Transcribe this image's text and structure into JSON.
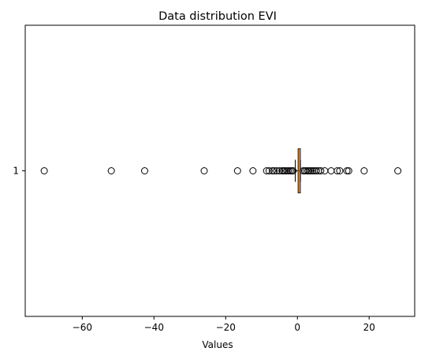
{
  "chart_data": {
    "type": "boxplot",
    "orientation": "horizontal",
    "title": "Data distribution EVI",
    "xlabel": "Values",
    "ylabel": "",
    "xlim": [
      -75.9,
      32.7
    ],
    "xticks": [
      -60,
      -40,
      -20,
      0,
      20
    ],
    "xtick_labels": [
      "−60",
      "−40",
      "−20",
      "0",
      "20"
    ],
    "ytick_labels": [
      "1"
    ],
    "grid": false,
    "legend": "none",
    "box": {
      "whisker_low": -0.6,
      "q1": 0.2,
      "median": 0.45,
      "q3": 0.8,
      "whisker_high": 0.85
    },
    "outliers": [
      -70.6,
      -51.9,
      -42.6,
      -26.0,
      -16.7,
      -12.4,
      -8.6,
      -7.9,
      -7.0,
      -6.5,
      -5.8,
      -5.0,
      -4.3,
      -3.9,
      -3.5,
      -3.0,
      -2.5,
      -2.0,
      -1.6,
      -1.2,
      1.6,
      2.0,
      2.4,
      2.9,
      3.3,
      3.8,
      4.3,
      4.8,
      5.3,
      5.9,
      6.5,
      7.6,
      9.4,
      11.1,
      11.8,
      13.8,
      14.3,
      18.6,
      28.0
    ],
    "colors": {
      "box_edge": "#000000",
      "median": "#ff7f0e",
      "outlier_edge": "#000000",
      "axes": "#000000",
      "background": "#ffffff"
    }
  }
}
